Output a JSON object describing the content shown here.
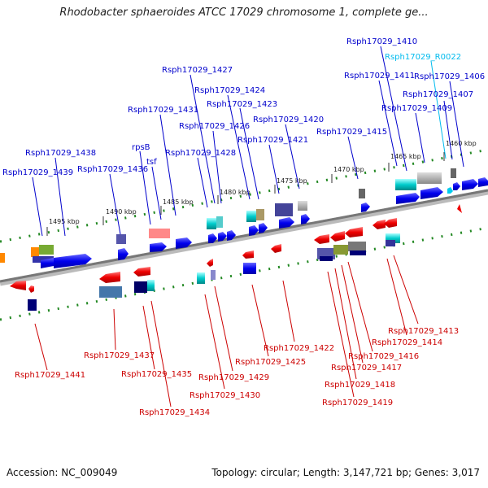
{
  "title": "Rhodobacter sphaeroides ATCC 17029 chromosome 1, complete ge...",
  "accession": "Accession: NC_009049",
  "summary": "Topology: circular; Length: 3,147,721 bp; Genes: 3,017",
  "colors": {
    "forward_label": "#0000cc",
    "reverse_label": "#cc0000",
    "rna_label": "#00bbee",
    "backbone": "#888888",
    "tick": "#228822"
  },
  "kbp_markers": [
    "1495 kbp",
    "1490 kbp",
    "1485 kbp",
    "1480 kbp",
    "1475 kbp",
    "1470 kbp",
    "1465 kbp",
    "1460 kbp"
  ],
  "forward_genes": [
    "Rsph17029_1439",
    "Rsph17029_1438",
    "Rsph17029_1436",
    "rpsB",
    "tsf",
    "Rsph17029_1431",
    "Rsph17029_1428",
    "Rsph17029_1427",
    "Rsph17029_1426",
    "Rsph17029_1424",
    "Rsph17029_1423",
    "Rsph17029_1421",
    "Rsph17029_1420",
    "Rsph17029_1415",
    "Rsph17029_1411",
    "Rsph17029_1410",
    "Rsph17029_1409",
    "Rsph17029_1407",
    "Rsph17029_1406"
  ],
  "rna_genes": [
    "Rsph17029_R0022"
  ],
  "reverse_genes": [
    "Rsph17029_1441",
    "Rsph17029_1437",
    "Rsph17029_1435",
    "Rsph17029_1434",
    "Rsph17029_1430",
    "Rsph17029_1429",
    "Rsph17029_1425",
    "Rsph17029_1422",
    "Rsph17029_1419",
    "Rsph17029_1418",
    "Rsph17029_1417",
    "Rsph17029_1416",
    "Rsph17029_1414",
    "Rsph17029_1413"
  ]
}
